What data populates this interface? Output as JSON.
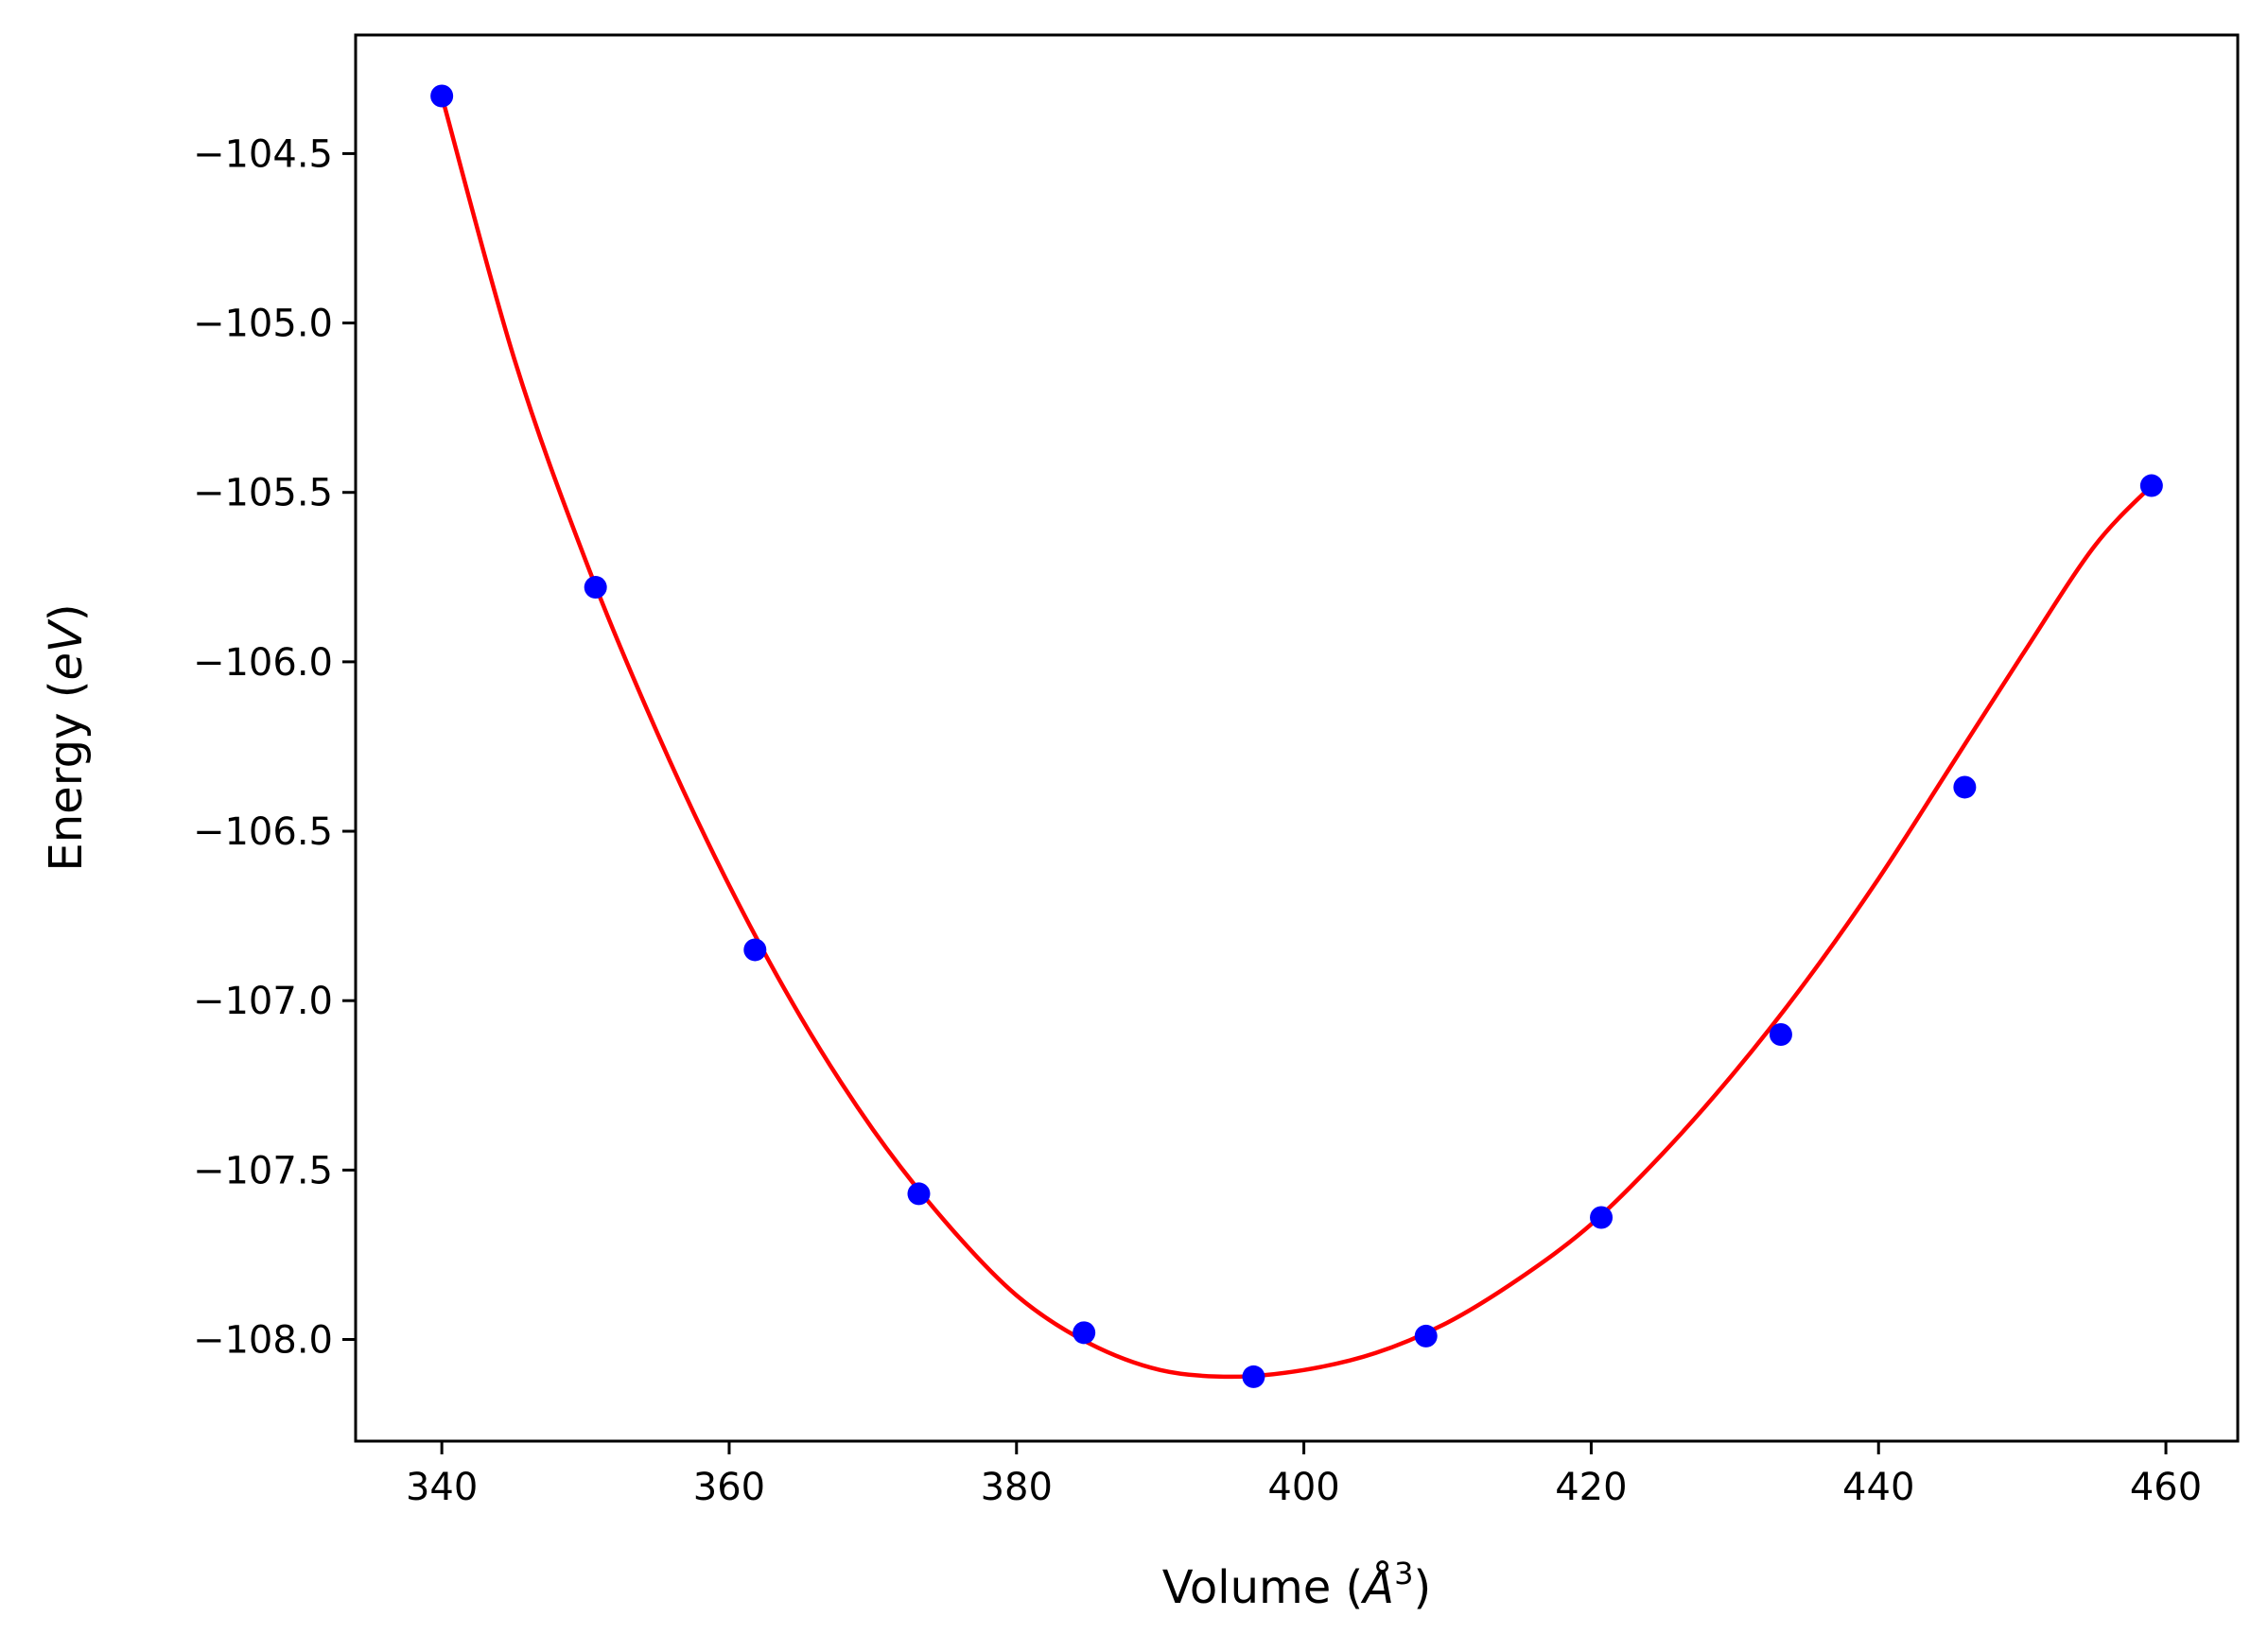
{
  "chart_data": {
    "type": "scatter",
    "title": "",
    "xlabel": "Volume (Å³)",
    "xlabel_parts": {
      "prefix": "Volume (",
      "symbol": "Å",
      "superscript": "3",
      "suffix": ")"
    },
    "ylabel": "Energy (eV)",
    "ylabel_parts": {
      "prefix": "Energy (",
      "symbol": "eV",
      "suffix": ")"
    },
    "xlim": [
      334,
      465
    ],
    "ylim": [
      -108.3,
      -104.15
    ],
    "x_ticks": [
      340,
      360,
      380,
      400,
      420,
      440,
      460
    ],
    "x_tick_labels": [
      "340",
      "360",
      "380",
      "400",
      "420",
      "440",
      "460"
    ],
    "y_ticks": [
      -104.5,
      -105.0,
      -105.5,
      -106.0,
      -106.5,
      -107.0,
      -107.5,
      -108.0
    ],
    "y_tick_labels": [
      "−104.5",
      "−105.0",
      "−105.5",
      "−106.0",
      "−106.5",
      "−107.0",
      "−107.5",
      "−108.0"
    ],
    "grid": false,
    "series": [
      {
        "kind": "points",
        "color": "#0000ff",
        "x": [
          340.0,
          350.7,
          361.8,
          373.2,
          384.7,
          396.5,
          408.5,
          420.7,
          433.2,
          446.0,
          459.0
        ],
        "y": [
          -104.33,
          -105.78,
          -106.85,
          -107.57,
          -107.98,
          -108.11,
          -107.99,
          -107.64,
          -107.1,
          -106.37,
          -105.48
        ]
      },
      {
        "kind": "fit-curve",
        "color": "#ff0000",
        "x": [
          340,
          345,
          350,
          355,
          360,
          365,
          370,
          375,
          380,
          385,
          390,
          395,
          400,
          405,
          410,
          415,
          420,
          425,
          430,
          435,
          440,
          445,
          450,
          455,
          459
        ],
        "y": [
          -104.33,
          -105.1,
          -105.7,
          -106.21,
          -106.66,
          -107.05,
          -107.38,
          -107.65,
          -107.87,
          -108.01,
          -108.09,
          -108.11,
          -108.09,
          -108.04,
          -107.95,
          -107.82,
          -107.66,
          -107.45,
          -107.21,
          -106.94,
          -106.64,
          -106.31,
          -105.98,
          -105.66,
          -105.48
        ]
      }
    ]
  }
}
